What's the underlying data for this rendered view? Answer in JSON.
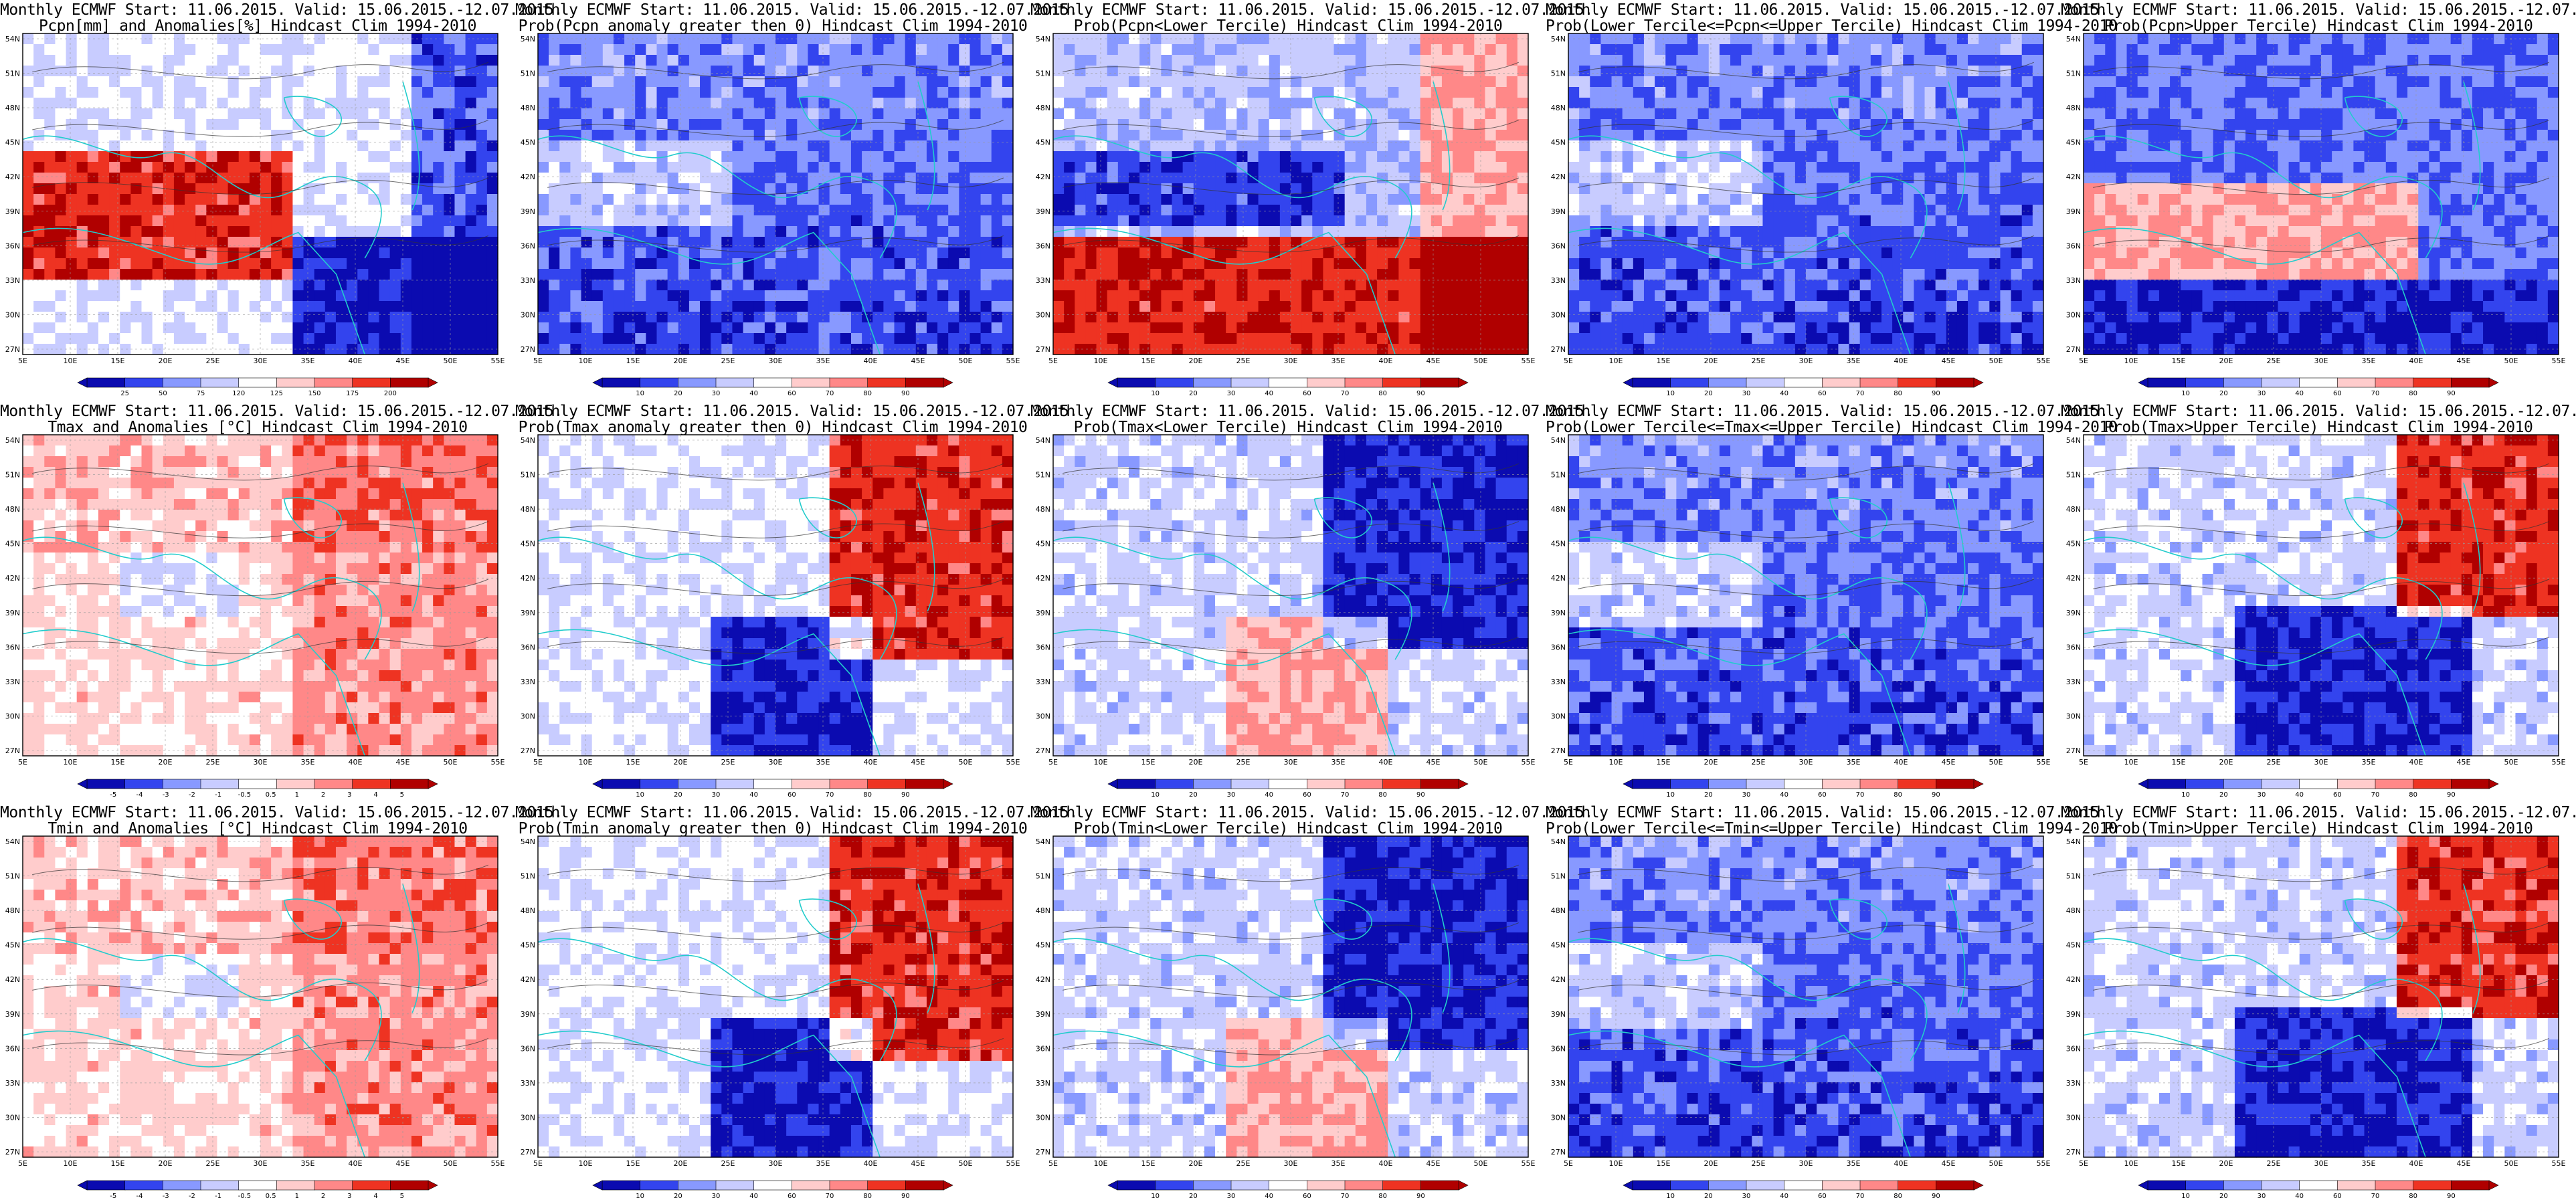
{
  "common": {
    "header": "Monthly ECMWF Start: 11.06.2015. Valid: 15.06.2015.-12.07.2015.",
    "lat_labels": [
      "54N",
      "51N",
      "48N",
      "45N",
      "42N",
      "39N",
      "36N",
      "33N",
      "30N",
      "27N"
    ],
    "lon_labels": [
      "5E",
      "10E",
      "15E",
      "20E",
      "25E",
      "30E",
      "35E",
      "40E",
      "45E",
      "50E",
      "55E"
    ],
    "colorbar_blue_red": [
      "#0b0bb0",
      "#3344ee",
      "#8899ff",
      "#c8ccff",
      "#ffffff",
      "#ffcccc",
      "#ff8888",
      "#ee3322",
      "#b00000"
    ],
    "prob_ticks": [
      "10",
      "20",
      "30",
      "40",
      "60",
      "70",
      "80",
      "90"
    ],
    "coast_color": "#22cccc"
  },
  "panels": [
    {
      "row": 0,
      "col": 0,
      "subtitle": "Pcpn[mm] and Anomalies[%] Hindcast Clim 1994-2010",
      "ticks": [
        "25",
        "50",
        "75",
        "120",
        "125",
        "150",
        "175",
        "200"
      ],
      "bias": "red-south"
    },
    {
      "row": 0,
      "col": 1,
      "subtitle": "Prob(Pcpn anomaly greater then 0) Hindcast Clim 1994-2010",
      "ticks": [
        "10",
        "20",
        "30",
        "40",
        "60",
        "70",
        "80",
        "90"
      ],
      "bias": "blue"
    },
    {
      "row": 0,
      "col": 2,
      "subtitle": "Prob(Pcpn<Lower Tercile) Hindcast Clim 1994-2010",
      "ticks": [
        "10",
        "20",
        "30",
        "40",
        "60",
        "70",
        "80",
        "90"
      ],
      "bias": "red-south-strong"
    },
    {
      "row": 0,
      "col": 3,
      "subtitle": "Prob(Lower Tercile<=Pcpn<=Upper Tercile) Hindcast Clim 1994-2010",
      "ticks": [
        "10",
        "20",
        "30",
        "40",
        "60",
        "70",
        "80",
        "90"
      ],
      "bias": "blue"
    },
    {
      "row": 0,
      "col": 4,
      "subtitle": "Prob(Pcpn>Upper Tercile) Hindcast Clim 1994-2010",
      "ticks": [
        "10",
        "20",
        "30",
        "40",
        "60",
        "70",
        "80",
        "90"
      ],
      "bias": "blue-red-mid"
    },
    {
      "row": 1,
      "col": 0,
      "subtitle": "Tmax and Anomalies [°C] Hindcast Clim 1994-2010",
      "ticks": [
        "-5",
        "-4",
        "-3",
        "-2",
        "-1",
        "-0.5",
        "0.5",
        "1",
        "2",
        "3",
        "4",
        "5"
      ],
      "bias": "light-red"
    },
    {
      "row": 1,
      "col": 1,
      "subtitle": "Prob(Tmax anomaly greater then 0) Hindcast Clim 1994-2010",
      "ticks": [
        "10",
        "20",
        "30",
        "40",
        "60",
        "70",
        "80",
        "90"
      ],
      "bias": "red-ne"
    },
    {
      "row": 1,
      "col": 2,
      "subtitle": "Prob(Tmax<Lower Tercile) Hindcast Clim 1994-2010",
      "ticks": [
        "10",
        "20",
        "30",
        "40",
        "60",
        "70",
        "80",
        "90"
      ],
      "bias": "blue-ne"
    },
    {
      "row": 1,
      "col": 3,
      "subtitle": "Prob(Lower Tercile<=Tmax<=Upper Tercile) Hindcast Clim 1994-2010",
      "ticks": [
        "10",
        "20",
        "30",
        "40",
        "60",
        "70",
        "80",
        "90"
      ],
      "bias": "blue"
    },
    {
      "row": 1,
      "col": 4,
      "subtitle": "Prob(Tmax>Upper Tercile) Hindcast Clim 1994-2010",
      "ticks": [
        "10",
        "20",
        "30",
        "40",
        "60",
        "70",
        "80",
        "90"
      ],
      "bias": "red-ne-blue-s"
    },
    {
      "row": 2,
      "col": 0,
      "subtitle": "Tmin and Anomalies [°C] Hindcast Clim 1994-2010",
      "ticks": [
        "-5",
        "-4",
        "-3",
        "-2",
        "-1",
        "-0.5",
        "0.5",
        "1",
        "2",
        "3",
        "4",
        "5"
      ],
      "bias": "light-red"
    },
    {
      "row": 2,
      "col": 1,
      "subtitle": "Prob(Tmin anomaly greater then 0) Hindcast Clim 1994-2010",
      "ticks": [
        "10",
        "20",
        "30",
        "40",
        "60",
        "70",
        "80",
        "90"
      ],
      "bias": "red-ne"
    },
    {
      "row": 2,
      "col": 2,
      "subtitle": "Prob(Tmin<Lower Tercile) Hindcast Clim 1994-2010",
      "ticks": [
        "10",
        "20",
        "30",
        "40",
        "60",
        "70",
        "80",
        "90"
      ],
      "bias": "blue-ne"
    },
    {
      "row": 2,
      "col": 3,
      "subtitle": "Prob(Lower Tercile<=Tmin<=Upper Tercile) Hindcast Clim 1994-2010",
      "ticks": [
        "10",
        "20",
        "30",
        "40",
        "60",
        "70",
        "80",
        "90"
      ],
      "bias": "blue"
    },
    {
      "row": 2,
      "col": 4,
      "subtitle": "Prob(Tmin>Upper Tercile) Hindcast Clim 1994-2010",
      "ticks": [
        "10",
        "20",
        "30",
        "40",
        "60",
        "70",
        "80",
        "90"
      ],
      "bias": "red-ne-blue-s"
    }
  ]
}
